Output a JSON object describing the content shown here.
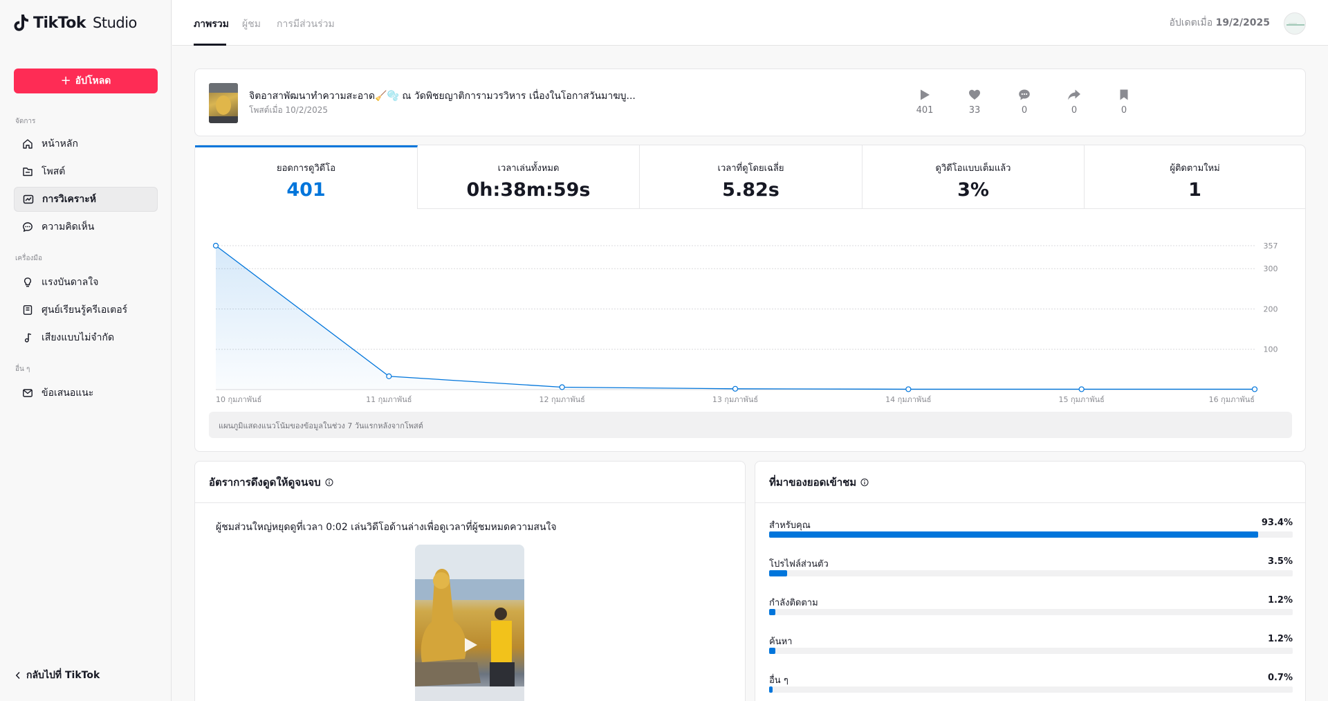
{
  "app": {
    "brand": "TikTok",
    "product": "Studio",
    "accent": "#fe2c55",
    "chart_color": "#0075db"
  },
  "sidebar": {
    "upload_label": "อัปโหลด",
    "sections": {
      "manage": "จัดการ",
      "tools": "เครื่องมือ",
      "others": "อื่น ๆ"
    },
    "items": [
      {
        "label": "หน้าหลัก",
        "icon": "home-icon"
      },
      {
        "label": "โพสต์",
        "icon": "posts-icon"
      },
      {
        "label": "การวิเคราะห์",
        "icon": "analytics-icon",
        "active": true
      },
      {
        "label": "ความคิดเห็น",
        "icon": "comment-icon"
      },
      {
        "label": "แรงบันดาลใจ",
        "icon": "lightbulb-icon"
      },
      {
        "label": "ศูนย์เรียนรู้ครีเอเตอร์",
        "icon": "book-icon"
      },
      {
        "label": "เสียงแบบไม่จำกัด",
        "icon": "music-icon"
      },
      {
        "label": "ข้อเสนอแนะ",
        "icon": "mail-icon"
      }
    ],
    "back_label": "กลับไปที่ TikTok"
  },
  "header": {
    "tabs": [
      {
        "label": "ภาพรวม",
        "active": true
      },
      {
        "label": "ผู้ชม"
      },
      {
        "label": "การมีส่วนร่วม"
      }
    ],
    "updated_prefix": "อัปเดตเมื่อ",
    "updated_date": "19/2/2025"
  },
  "video": {
    "title": "จิตอาสาพัฒนาทำความสะอาด🧹🫧 ณ วัดพิชยญาติการามวรวิหาร เนื่องในโอกาสวันมาฆบู...",
    "posted": "โพสต์เมื่อ 10/2/2025",
    "stats": {
      "views": "401",
      "likes": "33",
      "comments": "0",
      "shares": "0",
      "saves": "0"
    }
  },
  "metrics": [
    {
      "label": "ยอดการดูวิดีโอ",
      "value": "401",
      "active": true
    },
    {
      "label": "เวลาเล่นทั้งหมด",
      "value": "0h:38m:59s"
    },
    {
      "label": "เวลาที่ดูโดยเฉลี่ย",
      "value": "5.82s"
    },
    {
      "label": "ดูวิดีโอแบบเต็มแล้ว",
      "value": "3%"
    },
    {
      "label": "ผู้ติดตามใหม่",
      "value": "1"
    }
  ],
  "chart_data": {
    "type": "area",
    "x": [
      "10 กุมภาพันธ์",
      "11 กุมภาพันธ์",
      "12 กุมภาพันธ์",
      "13 กุมภาพันธ์",
      "14 กุมภาพันธ์",
      "15 กุมภาพันธ์",
      "16 กุมภาพันธ์"
    ],
    "values": [
      357,
      33,
      6,
      2,
      1,
      1,
      1
    ],
    "ytick_labels": [
      "357",
      "300",
      "200",
      "100"
    ],
    "yticks": [
      357,
      300,
      200,
      100
    ],
    "ylim": [
      0,
      357
    ],
    "grid": true,
    "color": "#0075db"
  },
  "chart_note": "แผนภูมิแสดงแนวโน้มของข้อมูลในช่วง 7 วันแรกหลังจากโพสต์",
  "retention": {
    "title": "อัตราการดึงดูดให้ดูจนจบ",
    "text": "ผู้ชมส่วนใหญ่หยุดดูที่เวลา 0:02 เล่นวิดีโอด้านล่างเพื่อดูเวลาที่ผู้ชมหมดความสนใจ"
  },
  "traffic": {
    "title": "ที่มาของยอดเข้าชม",
    "sources": [
      {
        "label": "สำหรับคุณ",
        "pct_label": "93.4%",
        "value": 93.4
      },
      {
        "label": "โปรไฟล์ส่วนตัว",
        "pct_label": "3.5%",
        "value": 3.5
      },
      {
        "label": "กำลังติดตาม",
        "pct_label": "1.2%",
        "value": 1.2
      },
      {
        "label": "ค้นหา",
        "pct_label": "1.2%",
        "value": 1.2
      },
      {
        "label": "อื่น ๆ",
        "pct_label": "0.7%",
        "value": 0.7
      }
    ]
  }
}
